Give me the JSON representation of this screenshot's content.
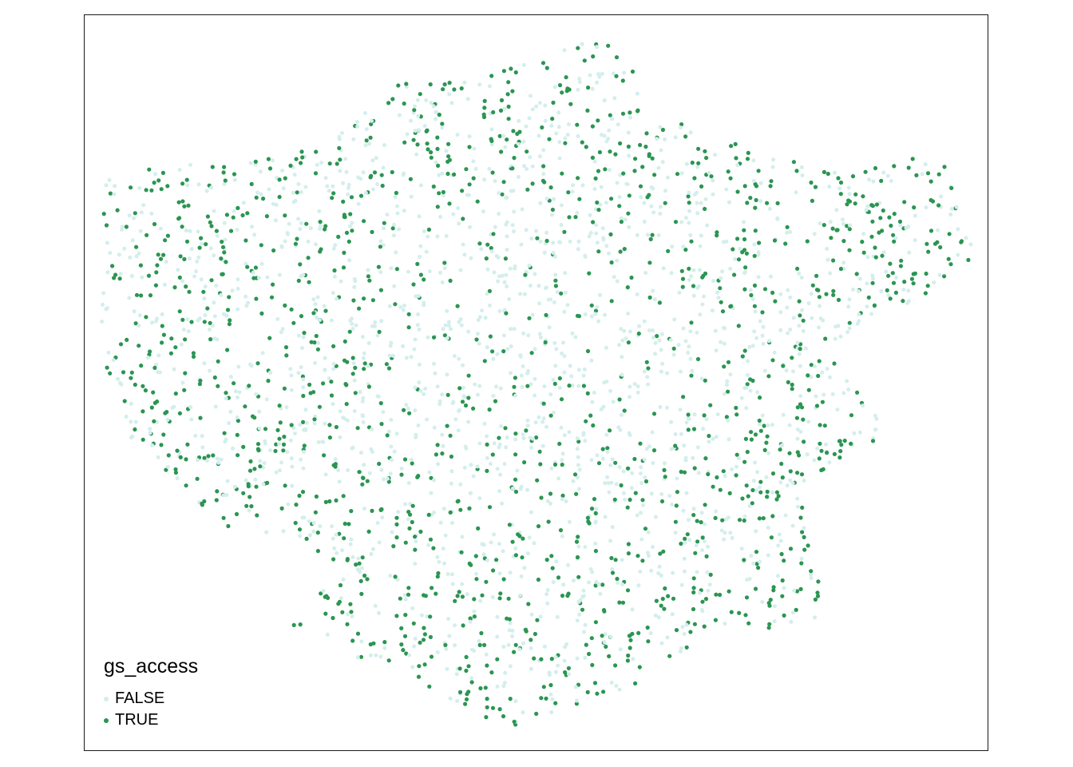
{
  "map": {
    "variable": "gs_access",
    "colors": {
      "FALSE": "#d4eeec",
      "TRUE": "#2b9552"
    },
    "legend": {
      "title": "gs_access",
      "items": [
        {
          "label": "FALSE",
          "color": "#d4eeec"
        },
        {
          "label": "TRUE",
          "color": "#2b9552"
        }
      ]
    }
  }
}
